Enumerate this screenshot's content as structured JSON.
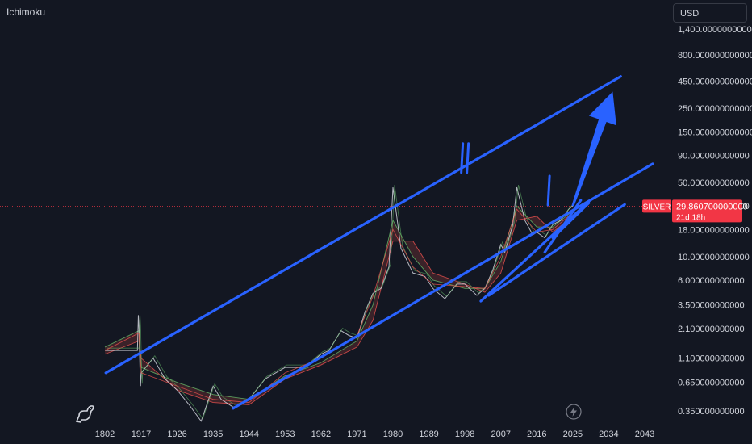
{
  "indicator_label": "Ichimoku",
  "currency": "USD",
  "colors": {
    "background": "#131722",
    "trendline": "#2962ff",
    "price_tag": "#f23645",
    "price_line": "#f23645",
    "text": "#d1d4dc",
    "line_white": "#d1d4dc",
    "line_green": "#66bb6a",
    "line_red": "#ef5350",
    "cloud_red": "#5d2b2f",
    "cloud_green": "#1e4a3a"
  },
  "chart_data": {
    "type": "line",
    "title": "",
    "symbol": "SILVER",
    "scale": "log",
    "y_axis_position": "right",
    "x_ticks": [
      "1802",
      "1917",
      "1926",
      "1935",
      "1944",
      "1953",
      "1962",
      "1971",
      "1980",
      "1989",
      "1998",
      "2007",
      "2016",
      "2025",
      "2034",
      "2043"
    ],
    "y_ticks": [
      "1,400.000000000000",
      "800.000000000000",
      "450.000000000000",
      "250.000000000000",
      "150.000000000000",
      "90.000000000000",
      "50.000000000000",
      "30.000000000000",
      "18.000000000000",
      "10.000000000000",
      "6.000000000000",
      "3.500000000000",
      "2.100000000000",
      "1.100000000000",
      "0.650000000000",
      "0.350000000000"
    ],
    "y_tick_values": [
      1400,
      800,
      450,
      250,
      150,
      90,
      50,
      30,
      18,
      10,
      6,
      3.5,
      2.1,
      1.1,
      0.65,
      0.35
    ],
    "ylim": [
      0.3,
      1600
    ],
    "current_price": {
      "symbol": "SILVER",
      "value": 29.8607,
      "label": "29.860700000000",
      "countdown": "21d 18h"
    },
    "series": [
      {
        "style": "price",
        "x": [
          "1802",
          "1905",
          "1908",
          "1910",
          "1913",
          "1915",
          "1917",
          "1920",
          "1923",
          "1926",
          "1929",
          "1932",
          "1935",
          "1937",
          "1940",
          "1942",
          "1944",
          "1948",
          "1953",
          "1958",
          "1962",
          "1964",
          "1967",
          "1969",
          "1971",
          "1973",
          "1975",
          "1977",
          "1979",
          "1980",
          "1982",
          "1985",
          "1988",
          "1990",
          "1993",
          "1996",
          "1998",
          "2001",
          "2003",
          "2005",
          "2007",
          "2008",
          "2010",
          "2011",
          "2013",
          "2015",
          "2016",
          "2018",
          "2020",
          "2022",
          "2024",
          "2025"
        ],
        "values": [
          1.3,
          1.3,
          2.8,
          2.1,
          0.9,
          0.6,
          0.8,
          1.1,
          0.7,
          0.55,
          0.4,
          0.28,
          0.6,
          0.45,
          0.38,
          0.4,
          0.45,
          0.7,
          0.9,
          0.9,
          1.2,
          1.3,
          2.0,
          1.8,
          1.7,
          3.0,
          4.5,
          5.0,
          8.0,
          45,
          12,
          7.0,
          6.5,
          5.0,
          4.0,
          5.5,
          5.5,
          4.3,
          5.0,
          7.5,
          13,
          11,
          20,
          45,
          22,
          16,
          17,
          15,
          20,
          22,
          28,
          30
        ]
      },
      {
        "style": "baseline",
        "x": [
          "1802",
          "1910",
          "1917",
          "1926",
          "1935",
          "1944",
          "1953",
          "1962",
          "1971",
          "1975",
          "1980",
          "1985",
          "1990",
          "1998",
          "2003",
          "2007",
          "2011",
          "2016",
          "2020",
          "2025"
        ],
        "values": [
          1.3,
          1.9,
          0.8,
          0.6,
          0.45,
          0.42,
          0.8,
          1.1,
          1.8,
          4.2,
          18,
          8,
          5.5,
          5.2,
          5.0,
          10,
          28,
          17,
          18,
          26
        ]
      }
    ],
    "cloud": {
      "x": [
        "1802",
        "1910",
        "1917",
        "1926",
        "1935",
        "1944",
        "1953",
        "1962",
        "1971",
        "1975",
        "1980",
        "1985",
        "1990",
        "1998",
        "2003",
        "2007",
        "2011",
        "2016",
        "2020",
        "2025"
      ],
      "span_a": [
        1.4,
        2.0,
        0.9,
        0.65,
        0.5,
        0.45,
        0.75,
        1.0,
        1.6,
        3.5,
        22,
        10,
        6.0,
        5.0,
        5.0,
        9,
        30,
        19,
        19,
        27
      ],
      "span_b": [
        1.2,
        1.6,
        1.1,
        0.55,
        0.42,
        0.4,
        0.7,
        0.95,
        1.4,
        2.5,
        14,
        14,
        7.0,
        5.5,
        4.6,
        7,
        22,
        24,
        17,
        24
      ]
    },
    "annotations": [
      {
        "type": "trendline",
        "from": [
          "1805",
          0.8
        ],
        "to": [
          "2037",
          500
        ]
      },
      {
        "type": "trendline",
        "from": [
          "1940",
          0.37
        ],
        "to": [
          "2045",
          75
        ]
      },
      {
        "type": "trendline",
        "from": [
          "2004",
          4.3
        ],
        "to": [
          "2038",
          31
        ]
      },
      {
        "type": "trendline",
        "from": [
          "2002",
          3.8
        ],
        "to": [
          "2029",
          33
        ]
      },
      {
        "type": "trendline",
        "from": [
          "2018",
          11
        ],
        "to": [
          "2027",
          34
        ]
      },
      {
        "type": "trendline",
        "from": [
          "2020",
          15
        ],
        "to": [
          "2029",
          32
        ]
      },
      {
        "type": "arrow",
        "from": [
          "2025",
          30
        ],
        "to": [
          "2035",
          360
        ]
      },
      {
        "type": "marks",
        "text": "II",
        "at": [
          "1998",
          85
        ]
      },
      {
        "type": "marks",
        "text": "I",
        "at": [
          "2019",
          42
        ]
      }
    ]
  }
}
